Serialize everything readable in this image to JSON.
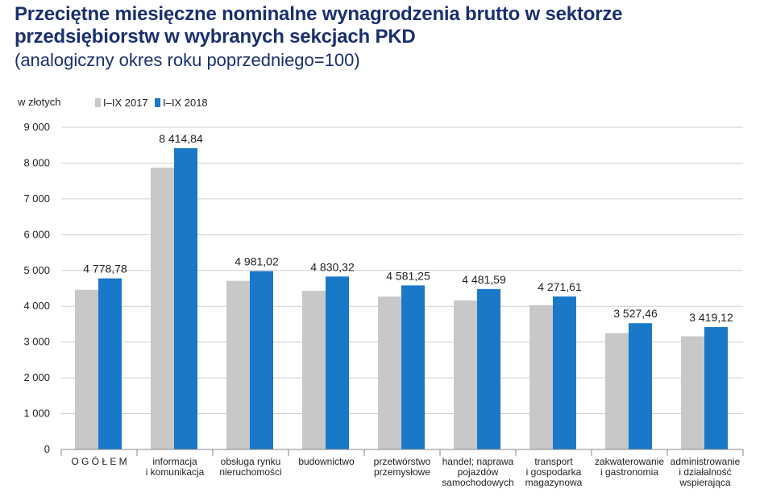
{
  "title_line1": "Przeciętne miesięczne nominalne wynagrodzenia brutto w sektorze",
  "title_line2": "przedsiębiorstw w wybranych sekcjach PKD",
  "subtitle": "(analogiczny okres roku poprzedniego=100)",
  "colors": {
    "series_2017": "#c8c8c8",
    "series_2018": "#1a78c8",
    "grid": "#d0d0d0",
    "axis": "#888888"
  },
  "chart_data": {
    "type": "bar",
    "ylabel": "w złotych",
    "ylim": [
      0,
      9000
    ],
    "yticks": [
      0,
      1000,
      2000,
      3000,
      4000,
      5000,
      6000,
      7000,
      8000,
      9000
    ],
    "ytick_labels": [
      "0",
      "1 000",
      "2 000",
      "3 000",
      "4 000",
      "5 000",
      "6 000",
      "7 000",
      "8 000",
      "9 000"
    ],
    "grid": true,
    "legend_position": "top-left",
    "categories": [
      [
        "O G Ó Ł E M"
      ],
      [
        "informacja",
        "i komunikacja"
      ],
      [
        "obsługa rynku",
        "nieruchomości"
      ],
      [
        "budownictwo"
      ],
      [
        "przetwórstwo",
        "przemysłowe"
      ],
      [
        "handel; naprawa",
        "pojazdów",
        "samochodowych"
      ],
      [
        "transport",
        "i gospodarka",
        "magazynowa"
      ],
      [
        "zakwaterowanie",
        "i gastronomia"
      ],
      [
        "administrowanie",
        "i działalność",
        "wspierająca"
      ]
    ],
    "series": [
      {
        "name": "I–IX 2017",
        "values": [
          4460,
          7870,
          4710,
          4430,
          4270,
          4160,
          4030,
          3250,
          3160
        ]
      },
      {
        "name": "I–IX 2018",
        "values": [
          4778.78,
          8414.84,
          4981.02,
          4830.32,
          4581.25,
          4481.59,
          4271.61,
          3527.46,
          3419.12
        ],
        "labels": [
          "4 778,78",
          "8 414,84",
          "4 981,02",
          "4 830,32",
          "4 581,25",
          "4 481,59",
          "4 271,61",
          "3 527,46",
          "3 419,12"
        ]
      }
    ]
  }
}
